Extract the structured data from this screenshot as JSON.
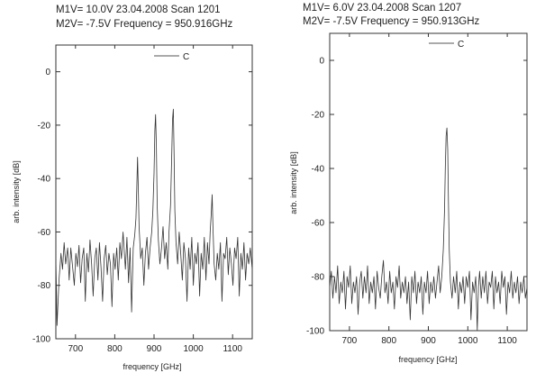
{
  "chart_data": [
    {
      "type": "line",
      "header": [
        "M1V= 10.0V 23.04.2008 Scan 1201",
        "M2V= -7.5V Frequency = 950.916GHz"
      ],
      "xlabel": "frequency [GHz]",
      "ylabel": "arb. intensity [dB]",
      "xlim": [
        650,
        1150
      ],
      "ylim": [
        -100,
        10
      ],
      "xticks": [
        700,
        800,
        900,
        1000,
        1100
      ],
      "yticks": [
        0,
        -20,
        -40,
        -60,
        -80,
        -100
      ],
      "legend": "C",
      "legend_position": "top-center",
      "grid": false,
      "series": [
        {
          "name": "C",
          "noise_floor": -72,
          "points": [
            [
              650,
              -70
            ],
            [
              653,
              -95
            ],
            [
              658,
              -78
            ],
            [
              663,
              -68
            ],
            [
              667,
              -74
            ],
            [
              671,
              -64
            ],
            [
              675,
              -72
            ],
            [
              680,
              -66
            ],
            [
              684,
              -78
            ],
            [
              688,
              -66
            ],
            [
              692,
              -72
            ],
            [
              697,
              -80
            ],
            [
              701,
              -68
            ],
            [
              705,
              -73
            ],
            [
              709,
              -65
            ],
            [
              713,
              -79
            ],
            [
              717,
              -70
            ],
            [
              721,
              -66
            ],
            [
              725,
              -86
            ],
            [
              729,
              -68
            ],
            [
              733,
              -75
            ],
            [
              737,
              -63
            ],
            [
              741,
              -72
            ],
            [
              745,
              -84
            ],
            [
              749,
              -70
            ],
            [
              753,
              -66
            ],
            [
              757,
              -78
            ],
            [
              761,
              -64
            ],
            [
              765,
              -73
            ],
            [
              769,
              -86
            ],
            [
              773,
              -70
            ],
            [
              777,
              -65
            ],
            [
              781,
              -76
            ],
            [
              785,
              -68
            ],
            [
              789,
              -72
            ],
            [
              793,
              -88
            ],
            [
              797,
              -68
            ],
            [
              801,
              -74
            ],
            [
              805,
              -66
            ],
            [
              809,
              -78
            ],
            [
              813,
              -64
            ],
            [
              817,
              -70
            ],
            [
              821,
              -60
            ],
            [
              824,
              -67
            ],
            [
              827,
              -74
            ],
            [
              831,
              -62
            ],
            [
              835,
              -79
            ],
            [
              839,
              -66
            ],
            [
              843,
              -90
            ],
            [
              847,
              -66
            ],
            [
              851,
              -61
            ],
            [
              854,
              -55
            ],
            [
              856,
              -44
            ],
            [
              858,
              -32
            ],
            [
              860,
              -45
            ],
            [
              862,
              -58
            ],
            [
              866,
              -70
            ],
            [
              870,
              -66
            ],
            [
              874,
              -80
            ],
            [
              878,
              -68
            ],
            [
              882,
              -62
            ],
            [
              886,
              -74
            ],
            [
              890,
              -66
            ],
            [
              894,
              -60
            ],
            [
              897,
              -52
            ],
            [
              900,
              -38
            ],
            [
              902,
              -22
            ],
            [
              904,
              -16
            ],
            [
              906,
              -28
            ],
            [
              908,
              -50
            ],
            [
              911,
              -63
            ],
            [
              915,
              -72
            ],
            [
              919,
              -66
            ],
            [
              923,
              -58
            ],
            [
              927,
              -70
            ],
            [
              931,
              -64
            ],
            [
              935,
              -74
            ],
            [
              938,
              -60
            ],
            [
              942,
              -50
            ],
            [
              945,
              -32
            ],
            [
              947,
              -18
            ],
            [
              949,
              -14
            ],
            [
              951,
              -30
            ],
            [
              953,
              -52
            ],
            [
              956,
              -64
            ],
            [
              960,
              -72
            ],
            [
              964,
              -60
            ],
            [
              968,
              -68
            ],
            [
              972,
              -78
            ],
            [
              976,
              -64
            ],
            [
              980,
              -70
            ],
            [
              984,
              -86
            ],
            [
              988,
              -66
            ],
            [
              992,
              -74
            ],
            [
              996,
              -62
            ],
            [
              1000,
              -80
            ],
            [
              1004,
              -68
            ],
            [
              1008,
              -72
            ],
            [
              1012,
              -64
            ],
            [
              1016,
              -84
            ],
            [
              1020,
              -68
            ],
            [
              1024,
              -74
            ],
            [
              1028,
              -62
            ],
            [
              1032,
              -78
            ],
            [
              1036,
              -64
            ],
            [
              1040,
              -72
            ],
            [
              1043,
              -60
            ],
            [
              1046,
              -52
            ],
            [
              1048,
              -46
            ],
            [
              1050,
              -58
            ],
            [
              1053,
              -72
            ],
            [
              1057,
              -78
            ],
            [
              1061,
              -68
            ],
            [
              1065,
              -74
            ],
            [
              1069,
              -64
            ],
            [
              1073,
              -86
            ],
            [
              1077,
              -68
            ],
            [
              1081,
              -70
            ],
            [
              1085,
              -62
            ],
            [
              1089,
              -76
            ],
            [
              1093,
              -66
            ],
            [
              1097,
              -72
            ],
            [
              1101,
              -80
            ],
            [
              1105,
              -66
            ],
            [
              1109,
              -70
            ],
            [
              1113,
              -62
            ],
            [
              1117,
              -84
            ],
            [
              1121,
              -68
            ],
            [
              1125,
              -74
            ],
            [
              1129,
              -64
            ],
            [
              1133,
              -78
            ],
            [
              1137,
              -68
            ],
            [
              1141,
              -72
            ],
            [
              1145,
              -66
            ],
            [
              1150,
              -74
            ]
          ]
        }
      ]
    },
    {
      "type": "line",
      "header": [
        "M1V=  6.0V 23.04.2008 Scan 1207",
        "M2V= -7.5V Frequency = 950.913GHz"
      ],
      "xlabel": "frequency [GHz]",
      "ylabel": "arb. intensity [dB]",
      "xlim": [
        650,
        1150
      ],
      "ylim": [
        -100,
        10
      ],
      "xticks": [
        700,
        800,
        900,
        1000,
        1100
      ],
      "yticks": [
        0,
        -20,
        -40,
        -60,
        -80,
        -100
      ],
      "legend": "C",
      "legend_position": "top-center",
      "grid": false,
      "series": [
        {
          "name": "C",
          "noise_floor": -84,
          "points": [
            [
              650,
              -84
            ],
            [
              654,
              -78
            ],
            [
              658,
              -88
            ],
            [
              662,
              -80
            ],
            [
              666,
              -86
            ],
            [
              670,
              -76
            ],
            [
              674,
              -90
            ],
            [
              678,
              -82
            ],
            [
              682,
              -86
            ],
            [
              686,
              -78
            ],
            [
              690,
              -92
            ],
            [
              694,
              -80
            ],
            [
              698,
              -84
            ],
            [
              702,
              -76
            ],
            [
              706,
              -90
            ],
            [
              710,
              -82
            ],
            [
              714,
              -86
            ],
            [
              718,
              -80
            ],
            [
              722,
              -94
            ],
            [
              726,
              -82
            ],
            [
              730,
              -78
            ],
            [
              734,
              -88
            ],
            [
              738,
              -80
            ],
            [
              742,
              -86
            ],
            [
              746,
              -76
            ],
            [
              750,
              -90
            ],
            [
              754,
              -82
            ],
            [
              758,
              -86
            ],
            [
              762,
              -80
            ],
            [
              766,
              -92
            ],
            [
              770,
              -78
            ],
            [
              774,
              -84
            ],
            [
              778,
              -88
            ],
            [
              782,
              -80
            ],
            [
              786,
              -74
            ],
            [
              790,
              -86
            ],
            [
              794,
              -82
            ],
            [
              798,
              -90
            ],
            [
              802,
              -78
            ],
            [
              806,
              -86
            ],
            [
              810,
              -82
            ],
            [
              814,
              -92
            ],
            [
              818,
              -80
            ],
            [
              822,
              -84
            ],
            [
              826,
              -76
            ],
            [
              830,
              -88
            ],
            [
              834,
              -82
            ],
            [
              838,
              -86
            ],
            [
              842,
              -80
            ],
            [
              846,
              -90
            ],
            [
              850,
              -82
            ],
            [
              854,
              -96
            ],
            [
              858,
              -80
            ],
            [
              862,
              -86
            ],
            [
              866,
              -78
            ],
            [
              870,
              -90
            ],
            [
              874,
              -82
            ],
            [
              878,
              -86
            ],
            [
              882,
              -80
            ],
            [
              886,
              -94
            ],
            [
              890,
              -82
            ],
            [
              894,
              -86
            ],
            [
              898,
              -78
            ],
            [
              902,
              -90
            ],
            [
              906,
              -82
            ],
            [
              910,
              -86
            ],
            [
              914,
              -80
            ],
            [
              918,
              -88
            ],
            [
              922,
              -82
            ],
            [
              926,
              -76
            ],
            [
              930,
              -86
            ],
            [
              934,
              -80
            ],
            [
              938,
              -70
            ],
            [
              941,
              -55
            ],
            [
              943,
              -40
            ],
            [
              945,
              -28
            ],
            [
              947,
              -25
            ],
            [
              949,
              -33
            ],
            [
              951,
              -52
            ],
            [
              953,
              -70
            ],
            [
              956,
              -82
            ],
            [
              960,
              -88
            ],
            [
              964,
              -80
            ],
            [
              968,
              -86
            ],
            [
              972,
              -78
            ],
            [
              976,
              -92
            ],
            [
              980,
              -82
            ],
            [
              984,
              -86
            ],
            [
              988,
              -80
            ],
            [
              992,
              -90
            ],
            [
              996,
              -80
            ],
            [
              1000,
              -84
            ],
            [
              1004,
              -78
            ],
            [
              1008,
              -96
            ],
            [
              1012,
              -82
            ],
            [
              1016,
              -86
            ],
            [
              1020,
              -80
            ],
            [
              1024,
              -100
            ],
            [
              1027,
              -84
            ],
            [
              1030,
              -78
            ],
            [
              1034,
              -88
            ],
            [
              1038,
              -80
            ],
            [
              1042,
              -86
            ],
            [
              1046,
              -78
            ],
            [
              1050,
              -90
            ],
            [
              1054,
              -82
            ],
            [
              1058,
              -84
            ],
            [
              1062,
              -78
            ],
            [
              1066,
              -92
            ],
            [
              1070,
              -80
            ],
            [
              1074,
              -86
            ],
            [
              1078,
              -82
            ],
            [
              1082,
              -90
            ],
            [
              1086,
              -78
            ],
            [
              1090,
              -84
            ],
            [
              1094,
              -80
            ],
            [
              1098,
              -94
            ],
            [
              1102,
              -82
            ],
            [
              1106,
              -86
            ],
            [
              1110,
              -78
            ],
            [
              1114,
              -88
            ],
            [
              1118,
              -82
            ],
            [
              1122,
              -86
            ],
            [
              1126,
              -80
            ],
            [
              1130,
              -90
            ],
            [
              1134,
              -82
            ],
            [
              1138,
              -86
            ],
            [
              1142,
              -80
            ],
            [
              1146,
              -88
            ],
            [
              1150,
              -84
            ]
          ]
        }
      ]
    }
  ]
}
